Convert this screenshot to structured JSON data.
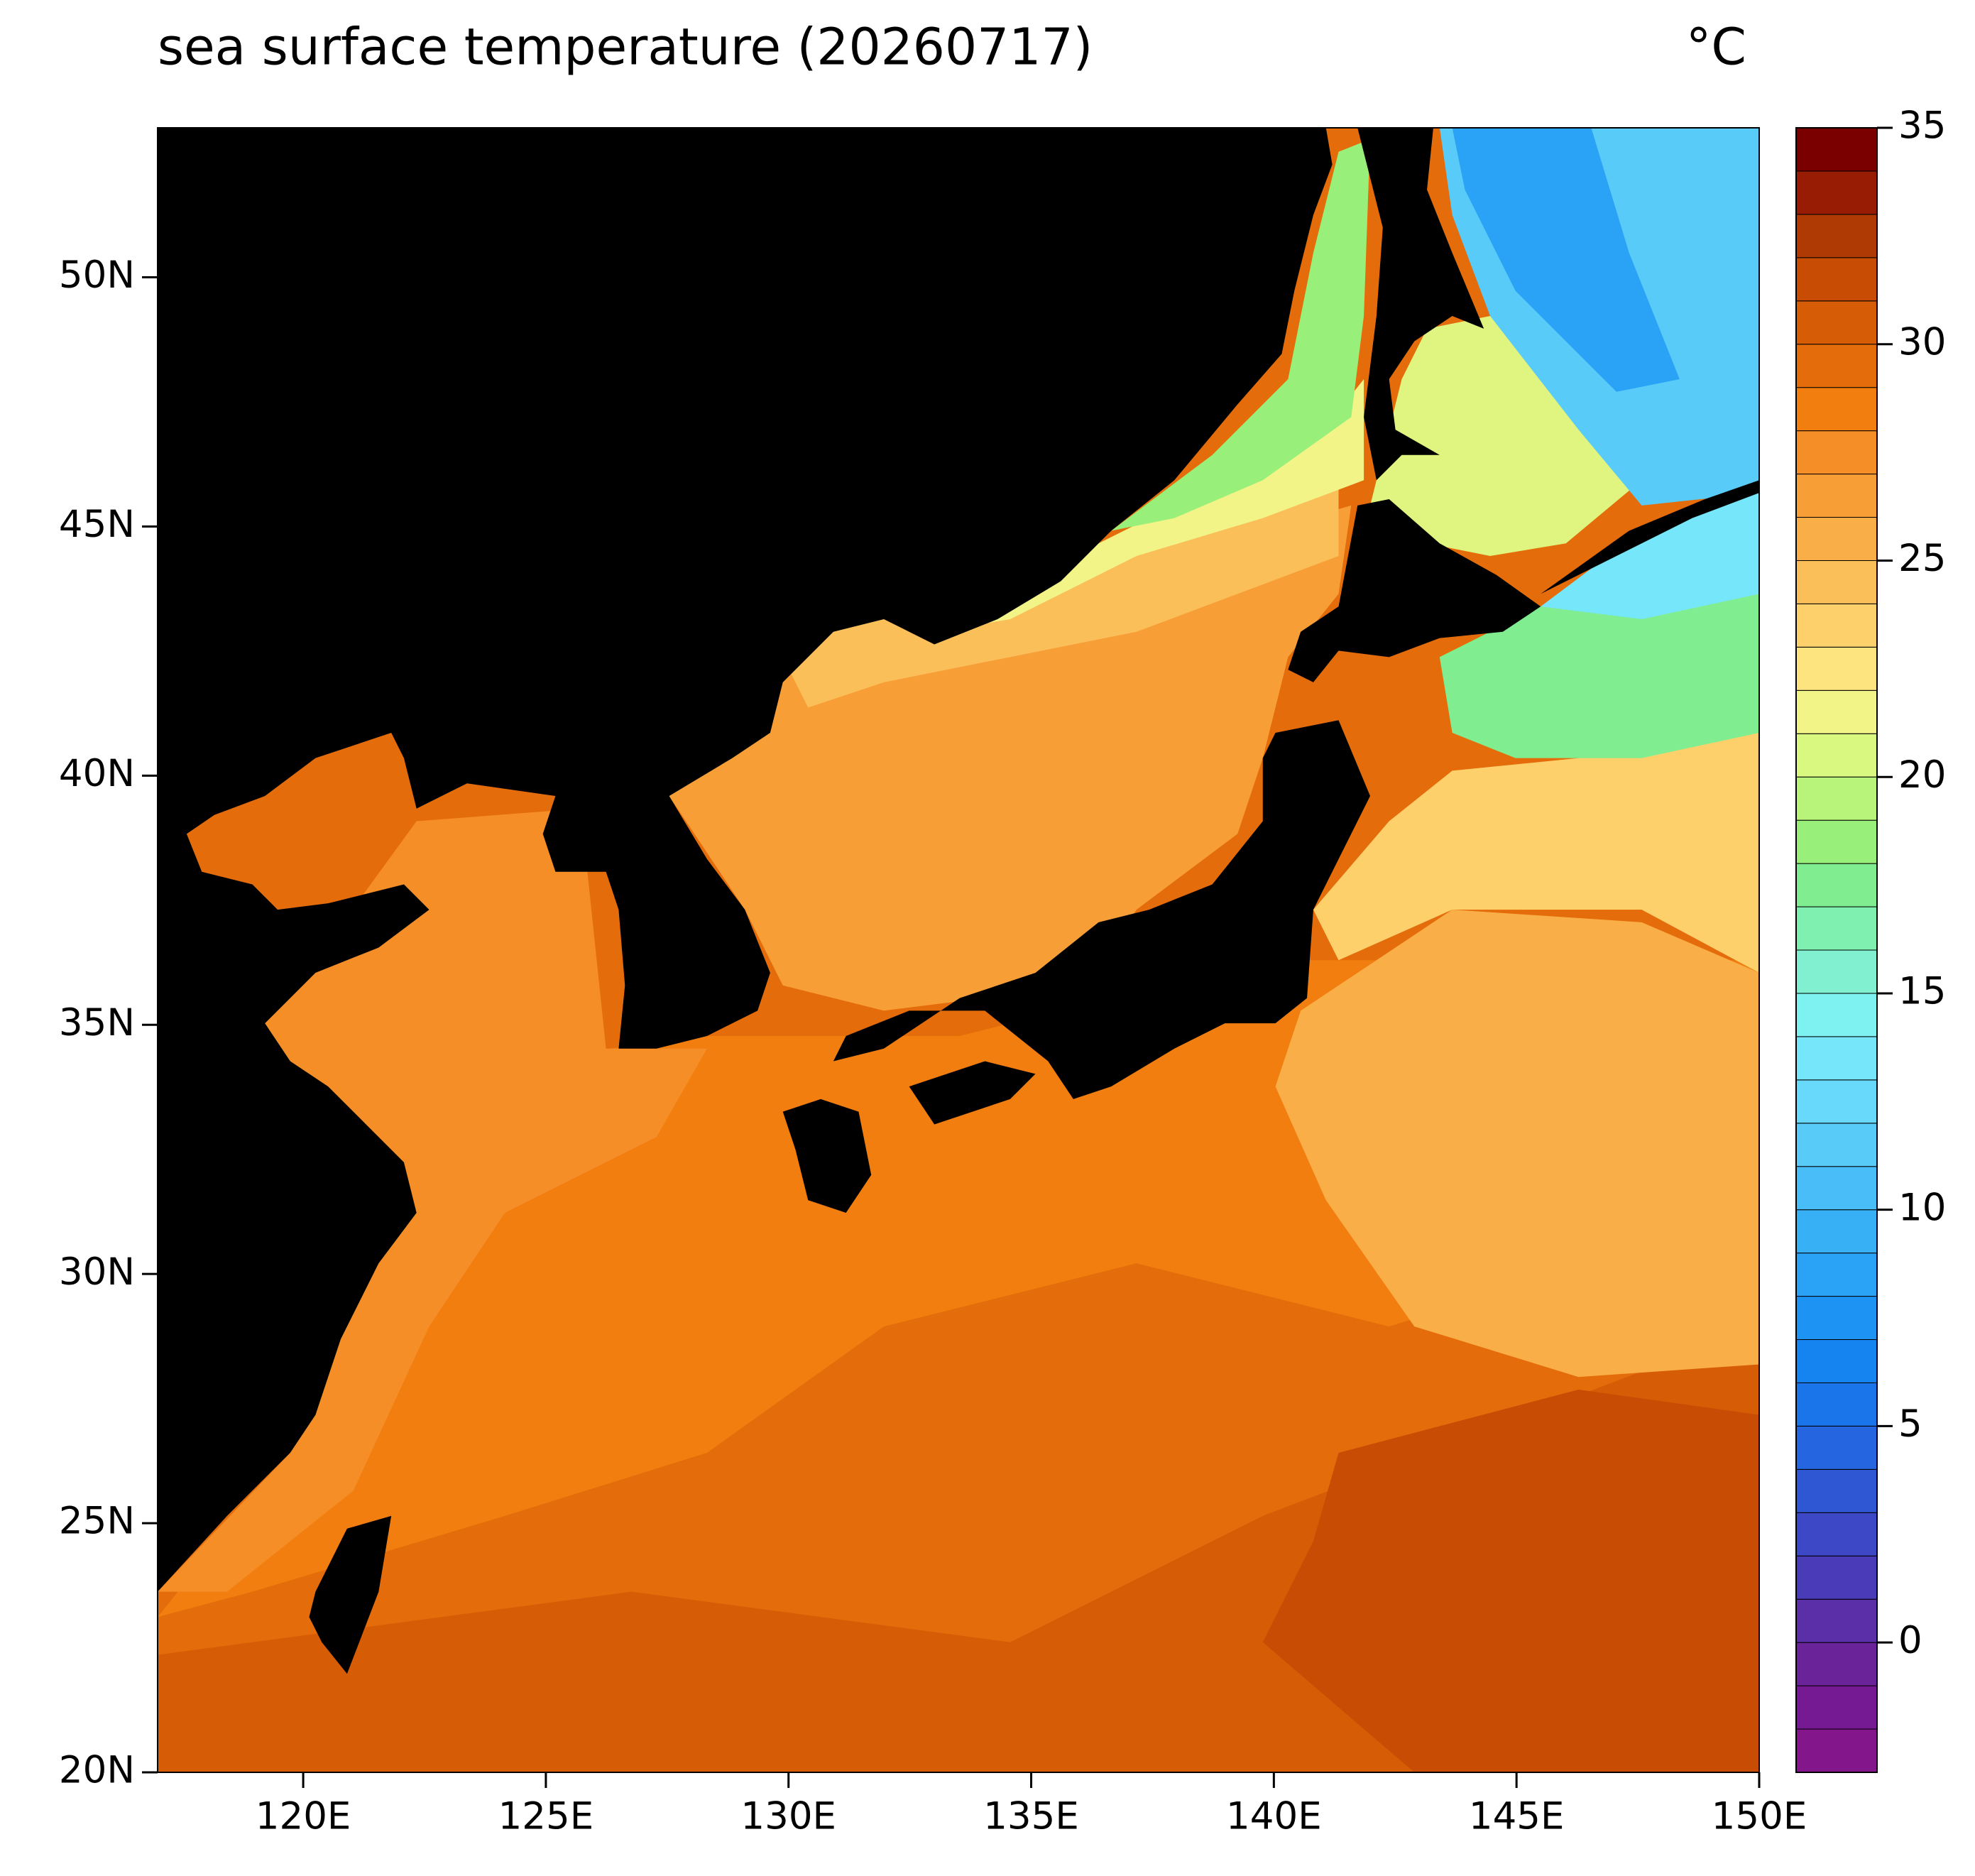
{
  "chart_data": {
    "type": "map",
    "title": "sea surface temperature (20260717)",
    "unit": "°C",
    "xlim": [
      117,
      150
    ],
    "ylim": [
      20,
      53
    ],
    "xticks": [
      {
        "value": 120,
        "label": "120E"
      },
      {
        "value": 125,
        "label": "125E"
      },
      {
        "value": 130,
        "label": "130E"
      },
      {
        "value": 135,
        "label": "135E"
      },
      {
        "value": 140,
        "label": "140E"
      },
      {
        "value": 145,
        "label": "145E"
      },
      {
        "value": 150,
        "label": "150E"
      }
    ],
    "yticks": [
      {
        "value": 20,
        "label": "20N"
      },
      {
        "value": 25,
        "label": "25N"
      },
      {
        "value": 30,
        "label": "30N"
      },
      {
        "value": 35,
        "label": "35N"
      },
      {
        "value": 40,
        "label": "40N"
      },
      {
        "value": 45,
        "label": "45N"
      },
      {
        "value": 50,
        "label": "50N"
      }
    ],
    "colorbar": {
      "range": [
        -3,
        35
      ],
      "ticks": [
        0,
        5,
        10,
        15,
        20,
        25,
        30,
        35
      ],
      "colors": [
        "#84168c",
        "#761a93",
        "#6a2398",
        "#5a2fa8",
        "#4a3bb8",
        "#3d48c6",
        "#2f57d4",
        "#2565e0",
        "#1a74ea",
        "#1584f0",
        "#1d93f3",
        "#2aa2f5",
        "#38b0f6",
        "#48bdf7",
        "#58cbf8",
        "#68d9fa",
        "#76e6fb",
        "#7ef2f0",
        "#80f0d0",
        "#7ff0b0",
        "#80ee90",
        "#98f07a",
        "#b8f47a",
        "#d8f880",
        "#f2f488",
        "#fde47e",
        "#fdd06c",
        "#fbbf5a",
        "#f9ae48",
        "#f79e36",
        "#f58e26",
        "#f27e10",
        "#e46c0a",
        "#d65c06",
        "#c84c04",
        "#b03a04",
        "#981c04",
        "#7a0000"
      ]
    }
  }
}
